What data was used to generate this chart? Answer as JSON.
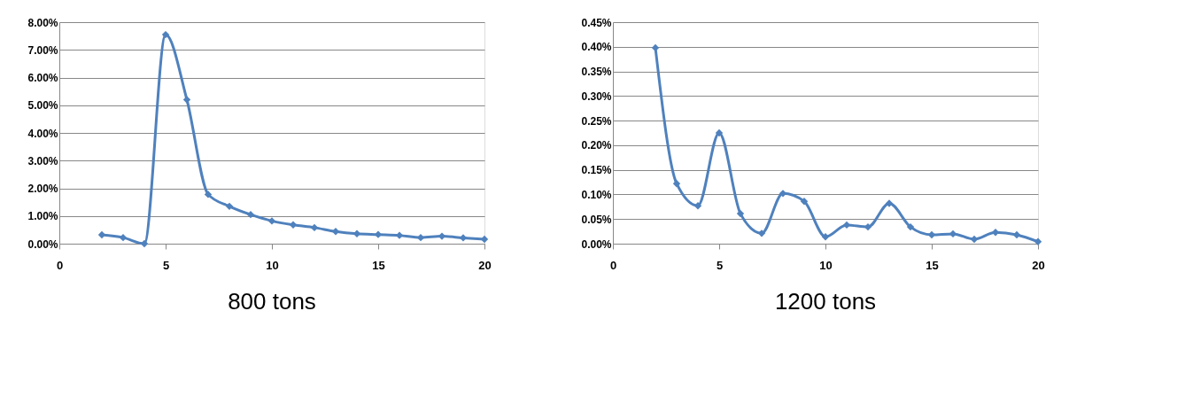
{
  "chart_data": [
    {
      "type": "line",
      "title": "800 tons",
      "x": [
        2,
        3,
        4,
        5,
        6,
        7,
        8,
        9,
        10,
        11,
        12,
        13,
        14,
        15,
        16,
        17,
        18,
        19,
        20
      ],
      "series": [
        {
          "color": "#4f81bd",
          "values": [
            0.32,
            0.22,
            0.0,
            7.55,
            5.2,
            1.78,
            1.35,
            1.05,
            0.82,
            0.68,
            0.58,
            0.44,
            0.36,
            0.33,
            0.3,
            0.22,
            0.27,
            0.21,
            0.16
          ]
        }
      ],
      "xlim": [
        0,
        20
      ],
      "xticks": [
        0,
        5,
        10,
        15,
        20
      ],
      "ylim": [
        0,
        8
      ],
      "yticks": [
        {
          "value": 0,
          "label": "0.00%"
        },
        {
          "value": 1,
          "label": "1.00%"
        },
        {
          "value": 2,
          "label": "2.00%"
        },
        {
          "value": 3,
          "label": "3.00%"
        },
        {
          "value": 4,
          "label": "4.00%"
        },
        {
          "value": 5,
          "label": "5.00%"
        },
        {
          "value": 6,
          "label": "6.00%"
        },
        {
          "value": 7,
          "label": "7.00%"
        },
        {
          "value": 8,
          "label": "8.00%"
        }
      ],
      "grid": "y",
      "marker": "diamond",
      "line_style": "solid",
      "legend": false
    },
    {
      "type": "line",
      "title": "1200 tons",
      "x": [
        2,
        3,
        4,
        5,
        6,
        7,
        8,
        9,
        10,
        11,
        12,
        13,
        14,
        15,
        16,
        17,
        18,
        19,
        20
      ],
      "series": [
        {
          "color": "#4f81bd",
          "values": [
            0.398,
            0.122,
            0.077,
            0.225,
            0.061,
            0.021,
            0.102,
            0.086,
            0.014,
            0.038,
            0.034,
            0.082,
            0.034,
            0.018,
            0.02,
            0.009,
            0.023,
            0.018,
            0.004
          ]
        }
      ],
      "xlim": [
        0,
        20
      ],
      "xticks": [
        0,
        5,
        10,
        15,
        20
      ],
      "ylim": [
        0,
        0.45
      ],
      "yticks": [
        {
          "value": 0,
          "label": "0.00%"
        },
        {
          "value": 0.05,
          "label": "0.05%"
        },
        {
          "value": 0.1,
          "label": "0.10%"
        },
        {
          "value": 0.15,
          "label": "0.15%"
        },
        {
          "value": 0.2,
          "label": "0.20%"
        },
        {
          "value": 0.25,
          "label": "0.25%"
        },
        {
          "value": 0.3,
          "label": "0.30%"
        },
        {
          "value": 0.35,
          "label": "0.35%"
        },
        {
          "value": 0.4,
          "label": "0.40%"
        },
        {
          "value": 0.45,
          "label": "0.45%"
        }
      ],
      "grid": "y",
      "marker": "diamond",
      "line_style": "solid",
      "legend": false
    }
  ]
}
